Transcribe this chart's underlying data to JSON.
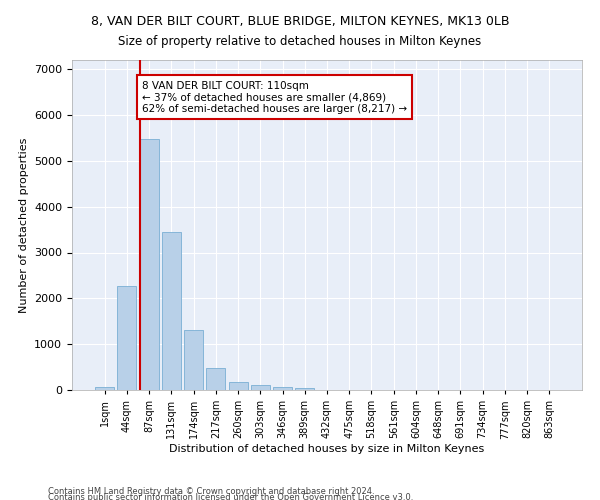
{
  "title": "8, VAN DER BILT COURT, BLUE BRIDGE, MILTON KEYNES, MK13 0LB",
  "subtitle": "Size of property relative to detached houses in Milton Keynes",
  "xlabel": "Distribution of detached houses by size in Milton Keynes",
  "ylabel": "Number of detached properties",
  "bar_color": "#b8d0e8",
  "bar_edge_color": "#7aafd4",
  "background_color": "#e8eef8",
  "grid_color": "#ffffff",
  "annotation_box_color": "#cc0000",
  "vline_color": "#cc0000",
  "vline_x": 2,
  "annotation_text": "8 VAN DER BILT COURT: 110sqm\n← 37% of detached houses are smaller (4,869)\n62% of semi-detached houses are larger (8,217) →",
  "footnote1": "Contains HM Land Registry data © Crown copyright and database right 2024.",
  "footnote2": "Contains public sector information licensed under the Open Government Licence v3.0.",
  "categories": [
    "1sqm",
    "44sqm",
    "87sqm",
    "131sqm",
    "174sqm",
    "217sqm",
    "260sqm",
    "303sqm",
    "346sqm",
    "389sqm",
    "432sqm",
    "475sqm",
    "518sqm",
    "561sqm",
    "604sqm",
    "648sqm",
    "691sqm",
    "734sqm",
    "777sqm",
    "820sqm",
    "863sqm"
  ],
  "values": [
    75,
    2280,
    5480,
    3450,
    1310,
    470,
    165,
    100,
    75,
    50,
    0,
    0,
    0,
    0,
    0,
    0,
    0,
    0,
    0,
    0,
    0
  ],
  "ylim": [
    0,
    7200
  ],
  "yticks": [
    0,
    1000,
    2000,
    3000,
    4000,
    5000,
    6000,
    7000
  ]
}
